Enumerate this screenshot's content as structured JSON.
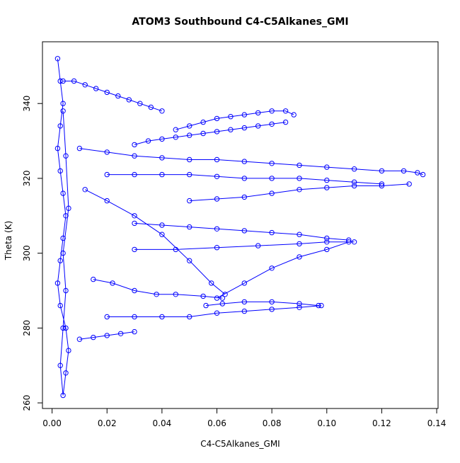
{
  "chart_data": {
    "type": "scatter",
    "title": "ATOM3 Southbound C4-C5Alkanes_GMI",
    "xlabel": "C4-C5Alkanes_GMI",
    "ylabel": "Theta (K)",
    "xlim": [
      -0.0035,
      0.1405
    ],
    "ylim": [
      258.5,
      356.5
    ],
    "xticks": [
      0.0,
      0.02,
      0.04,
      0.06,
      0.08,
      0.1,
      0.12,
      0.14
    ],
    "xtick_labels": [
      "0.00",
      "0.02",
      "0.04",
      "0.06",
      "0.08",
      "0.10",
      "0.12",
      "0.14"
    ],
    "yticks": [
      260,
      280,
      300,
      320,
      340
    ],
    "ytick_labels": [
      "260",
      "280",
      "300",
      "320",
      "340"
    ],
    "marker": "open-circle",
    "connect_points": true,
    "grid": false,
    "legend": "none",
    "color": "#0000ff",
    "series": [
      {
        "x": [
          0.002,
          0.003,
          0.004,
          0.003,
          0.002,
          0.003,
          0.004,
          0.005,
          0.004,
          0.003,
          0.002,
          0.003,
          0.005,
          0.006,
          0.005,
          0.004,
          0.003,
          0.004,
          0.005,
          0.004,
          0.006,
          0.005,
          0.004
        ],
        "y": [
          352,
          346,
          340,
          334,
          328,
          322,
          316,
          310,
          304,
          298,
          292,
          286,
          280,
          274,
          268,
          262,
          270,
          280,
          290,
          300,
          312,
          326,
          338
        ]
      },
      {
        "x": [
          0.004,
          0.008,
          0.012,
          0.016,
          0.02,
          0.024,
          0.028,
          0.032,
          0.036,
          0.04
        ],
        "y": [
          346,
          346,
          345,
          344,
          343,
          342,
          341,
          340,
          339,
          338
        ]
      },
      {
        "x": [
          0.045,
          0.05,
          0.055,
          0.06,
          0.065,
          0.07,
          0.075,
          0.08,
          0.085,
          0.088
        ],
        "y": [
          333,
          334,
          335,
          336,
          336.5,
          337,
          337.5,
          338,
          338,
          337
        ]
      },
      {
        "x": [
          0.03,
          0.035,
          0.04,
          0.045,
          0.05,
          0.055,
          0.06,
          0.065,
          0.07,
          0.075,
          0.08,
          0.085
        ],
        "y": [
          329,
          330,
          330.5,
          331,
          331.5,
          332,
          332.5,
          333,
          333.5,
          334,
          334.5,
          335
        ]
      },
      {
        "x": [
          0.01,
          0.02,
          0.03,
          0.04,
          0.05,
          0.06,
          0.07,
          0.08,
          0.09,
          0.1,
          0.11,
          0.12,
          0.128,
          0.133,
          0.135
        ],
        "y": [
          328,
          327,
          326,
          325.5,
          325,
          325,
          324.5,
          324,
          323.5,
          323,
          322.5,
          322,
          322,
          321.5,
          321
        ]
      },
      {
        "x": [
          0.02,
          0.03,
          0.04,
          0.05,
          0.06,
          0.07,
          0.08,
          0.09,
          0.1,
          0.11,
          0.12
        ],
        "y": [
          321,
          321,
          321,
          321,
          320.5,
          320,
          320,
          320,
          319.5,
          319,
          318.5
        ]
      },
      {
        "x": [
          0.05,
          0.06,
          0.07,
          0.08,
          0.09,
          0.1,
          0.11,
          0.12,
          0.13
        ],
        "y": [
          314,
          314.5,
          315,
          316,
          317,
          317.5,
          318,
          318,
          318.5
        ]
      },
      {
        "x": [
          0.03,
          0.04,
          0.05,
          0.06,
          0.07,
          0.08,
          0.09,
          0.1,
          0.108
        ],
        "y": [
          308,
          307.5,
          307,
          306.5,
          306,
          305.5,
          305,
          304,
          303.5
        ]
      },
      {
        "x": [
          0.03,
          0.045,
          0.06,
          0.075,
          0.09,
          0.1,
          0.11
        ],
        "y": [
          301,
          301,
          301.5,
          302,
          302.5,
          303,
          303
        ]
      },
      {
        "x": [
          0.06,
          0.07,
          0.08,
          0.09,
          0.1,
          0.108
        ],
        "y": [
          288,
          292,
          296,
          299,
          301,
          303
        ]
      },
      {
        "x": [
          0.02,
          0.03,
          0.04,
          0.05,
          0.06,
          0.07,
          0.08,
          0.09,
          0.098
        ],
        "y": [
          283,
          283,
          283,
          283,
          284,
          284.5,
          285,
          285.5,
          286
        ]
      },
      {
        "x": [
          0.056,
          0.062,
          0.07,
          0.08,
          0.09,
          0.097
        ],
        "y": [
          286,
          286.5,
          287,
          287,
          286.5,
          286
        ]
      },
      {
        "x": [
          0.01,
          0.015,
          0.02,
          0.025,
          0.03
        ],
        "y": [
          277,
          277.5,
          278,
          278.5,
          279
        ]
      },
      {
        "x": [
          0.012,
          0.02,
          0.03,
          0.04,
          0.05,
          0.058,
          0.063
        ],
        "y": [
          317,
          314,
          310,
          305,
          298,
          292,
          289
        ]
      },
      {
        "x": [
          0.015,
          0.022,
          0.03,
          0.038,
          0.045,
          0.055,
          0.062
        ],
        "y": [
          293,
          292,
          290,
          289,
          289,
          288.5,
          288
        ]
      }
    ]
  }
}
